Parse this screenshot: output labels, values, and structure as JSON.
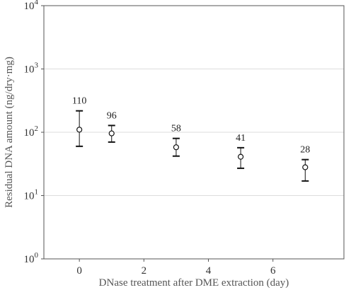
{
  "chart_data": {
    "type": "scatter",
    "title": "",
    "xlabel": "DNase treatment after DME extraction (day)",
    "ylabel": "Residual DNA amount (ng/dry·mg)",
    "x_ticks": [
      0,
      2,
      4,
      6
    ],
    "xlim": [
      -1.1,
      8.2
    ],
    "y_scale": "log",
    "ylim": [
      1,
      10000
    ],
    "y_ticks": [
      {
        "value": 1,
        "base": "10",
        "exp": "0"
      },
      {
        "value": 10,
        "base": "10",
        "exp": "1"
      },
      {
        "value": 100,
        "base": "10",
        "exp": "2"
      },
      {
        "value": 1000,
        "base": "10",
        "exp": "3"
      },
      {
        "value": 10000,
        "base": "10",
        "exp": "4"
      }
    ],
    "grid": true,
    "points": [
      {
        "x": 0,
        "y": 110,
        "err_low": 60,
        "err_high": 218,
        "label": "110"
      },
      {
        "x": 1,
        "y": 96,
        "err_low": 70,
        "err_high": 128,
        "label": "96"
      },
      {
        "x": 3,
        "y": 58,
        "err_low": 42,
        "err_high": 80,
        "label": "58"
      },
      {
        "x": 5,
        "y": 41,
        "err_low": 27,
        "err_high": 57,
        "label": "41"
      },
      {
        "x": 7,
        "y": 28,
        "err_low": 17,
        "err_high": 37,
        "label": "28"
      }
    ]
  }
}
